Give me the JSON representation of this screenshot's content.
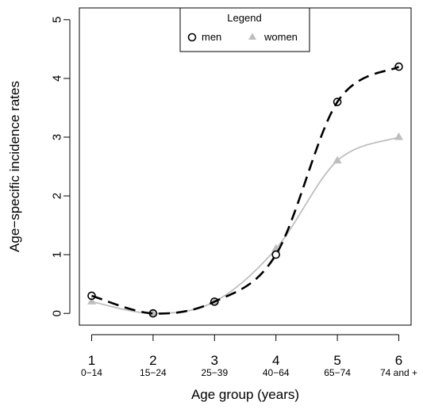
{
  "chart_data": {
    "type": "line",
    "title": "",
    "xlabel": "Age group (years)",
    "ylabel": "Age−specific incidence rates",
    "x": [
      1,
      2,
      3,
      4,
      5,
      6
    ],
    "x_tick_labels": [
      "1",
      "2",
      "3",
      "4",
      "5",
      "6"
    ],
    "x_sub_labels": [
      "0−14",
      "15−24",
      "25−39",
      "40−64",
      "65−74",
      "74 and +"
    ],
    "y_ticks": [
      0,
      1,
      2,
      3,
      4,
      5
    ],
    "y_tick_labels": [
      "0",
      "1",
      "2",
      "3",
      "4",
      "5"
    ],
    "xlim": [
      0.8,
      6.2
    ],
    "ylim": [
      -0.2,
      5.2
    ],
    "grid": false,
    "legend": {
      "title": "Legend",
      "placement": "top-center"
    },
    "series": [
      {
        "name": "men",
        "values": [
          0.3,
          0.0,
          0.2,
          1.0,
          3.6,
          4.2
        ],
        "color": "#000000",
        "line_style": "dashed",
        "marker": "open-circle"
      },
      {
        "name": "women",
        "values": [
          0.2,
          0.0,
          0.2,
          1.1,
          2.6,
          3.0
        ],
        "color": "#bebebe",
        "line_style": "solid",
        "marker": "filled-triangle"
      }
    ]
  }
}
